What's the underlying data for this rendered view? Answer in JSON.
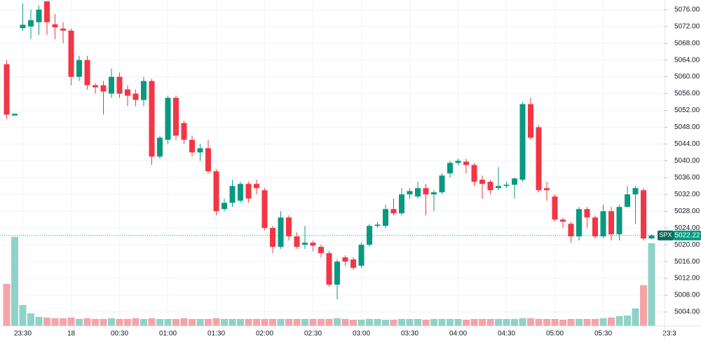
{
  "chart_data": {
    "type": "candlestick",
    "categories": [
      null,
      null,
      "23:30",
      null,
      null,
      null,
      null,
      null,
      "18",
      null,
      null,
      null,
      null,
      null,
      "00:30",
      null,
      null,
      null,
      null,
      null,
      "01:00",
      null,
      null,
      null,
      null,
      null,
      "01:30",
      null,
      null,
      null,
      null,
      null,
      "02:00",
      null,
      null,
      null,
      null,
      null,
      "02:30",
      null,
      null,
      null,
      null,
      null,
      "03:00",
      null,
      null,
      null,
      null,
      null,
      "03:30",
      null,
      null,
      null,
      null,
      null,
      "04:00",
      null,
      null,
      null,
      null,
      null,
      "04:30",
      null,
      null,
      null,
      null,
      null,
      "05:00",
      null,
      null,
      null,
      null,
      null,
      "05:30",
      null,
      null,
      null,
      null,
      null,
      null
    ],
    "edge_label": "23:3",
    "open": [
      5063,
      5050.8,
      5071.6,
      5072,
      5073,
      5078,
      5072.5,
      5071.5,
      5071,
      5060,
      5064,
      5058,
      5058,
      5056,
      5060,
      5057,
      5056,
      5054.5,
      5059,
      5041,
      5045,
      5055,
      5049,
      5045,
      5042,
      5043,
      5037.5,
      5028.5,
      5030,
      5030.5,
      5034.5,
      5034.5,
      5033,
      5024,
      5019.5,
      5026.5,
      5022,
      5020,
      5020.5,
      5019.5,
      5018,
      5010.5,
      5017,
      5016.5,
      5015,
      5020,
      5024.5,
      5024.5,
      5028.5,
      5027.5,
      5032,
      5031.5,
      5033.5,
      5032,
      5032.5,
      5037,
      5039.5,
      5039.8,
      5039,
      5035.5,
      5035,
      5033.5,
      5034,
      5034.3,
      5035.5,
      5053.5,
      5048,
      5033.5,
      5031.5,
      5026,
      5025,
      5022,
      5028.5,
      5026.5,
      5022,
      5028,
      5022.5,
      5029,
      5032,
      5033,
      5021.5
    ],
    "high": [
      5064,
      5051.3,
      5077.5,
      5076,
      5077,
      5077.8,
      5075,
      5073,
      5071.5,
      5065,
      5065,
      5058.5,
      5059,
      5062,
      5061,
      5058,
      5057,
      5060,
      5059.5,
      5046,
      5055.5,
      5055.5,
      5049.5,
      5046,
      5044,
      5045,
      5038,
      5031,
      5035.5,
      5035,
      5035,
      5035.5,
      5033.5,
      5024.5,
      5028,
      5027,
      5023,
      5024.5,
      5021,
      5020,
      5018.5,
      5016.5,
      5017.5,
      5017,
      5020.5,
      5025,
      5025.5,
      5029.5,
      5031,
      5033.5,
      5033.5,
      5035,
      5034.5,
      5033,
      5037,
      5040,
      5040.5,
      5040.5,
      5039.5,
      5036.5,
      5035.5,
      5038.5,
      5035,
      5036,
      5054,
      5055,
      5048.5,
      5035,
      5032,
      5026.5,
      5025.5,
      5029,
      5029,
      5027,
      5029.5,
      5029,
      5029.5,
      5034,
      5034,
      5033.5,
      5022.5
    ],
    "low": [
      5050,
      5050.7,
      5071,
      5069,
      5070,
      5070,
      5069,
      5068,
      5058,
      5059,
      5057,
      5056,
      5051,
      5055,
      5055,
      5053,
      5053,
      5053,
      5039,
      5040.5,
      5044,
      5045,
      5044,
      5041,
      5040,
      5037,
      5027,
      5028,
      5029,
      5030,
      5030,
      5032,
      5023.5,
      5018,
      5019,
      5021,
      5019,
      5019,
      5018.5,
      5017,
      5010,
      5007,
      5015,
      5014,
      5014.5,
      5019.5,
      5024,
      5024,
      5027,
      5027,
      5031,
      5031,
      5027,
      5028,
      5032,
      5036,
      5039,
      5037,
      5034,
      5031,
      5032,
      5033,
      5033.5,
      5031,
      5035,
      5045,
      5032.5,
      5030.5,
      5025.5,
      5024,
      5020.5,
      5021,
      5024,
      5021.5,
      5021.5,
      5021,
      5021,
      5029,
      5025,
      5021,
      5021.3
    ],
    "close": [
      5051,
      5051.2,
      5072.4,
      5073.5,
      5076,
      5073,
      5071.8,
      5071,
      5060,
      5064,
      5058,
      5057.5,
      5056.5,
      5060,
      5056,
      5055.5,
      5054.5,
      5059,
      5041,
      5045.5,
      5055,
      5046,
      5045,
      5042,
      5043,
      5037.5,
      5028,
      5030,
      5034,
      5034.5,
      5031,
      5033.5,
      5024,
      5019.5,
      5026.5,
      5022,
      5019.5,
      5020.5,
      5019.8,
      5018,
      5010.5,
      5016,
      5016,
      5014.5,
      5020,
      5024.5,
      5024.8,
      5028.5,
      5027.5,
      5032,
      5032.8,
      5033.5,
      5032,
      5032.5,
      5036.5,
      5039.5,
      5040,
      5039,
      5035,
      5034.5,
      5033,
      5034,
      5034.3,
      5035.8,
      5053.5,
      5045.5,
      5033,
      5033,
      5026,
      5025.5,
      5022,
      5028.5,
      5026.5,
      5022,
      5028,
      5022.5,
      5029,
      5032,
      5033.5,
      5021.5,
      5022.22
    ],
    "volume": [
      60,
      127,
      30,
      18,
      13,
      12,
      11,
      11,
      12,
      10,
      11,
      10,
      10,
      11,
      10,
      10,
      11,
      10,
      11,
      10,
      10,
      10,
      11,
      10,
      10,
      10,
      11,
      10,
      10,
      10,
      10,
      10,
      10,
      10,
      10,
      10,
      10,
      10,
      10,
      10,
      10,
      11,
      10,
      9,
      9,
      10,
      10,
      9,
      9,
      10,
      10,
      10,
      9,
      10,
      10,
      10,
      10,
      9,
      10,
      10,
      10,
      10,
      10,
      10,
      11,
      11,
      10,
      10,
      10,
      9,
      10,
      10,
      10,
      10,
      11,
      12,
      14,
      15,
      25,
      58,
      118
    ],
    "up_color": "#089981",
    "down_color": "#f23645",
    "volume_up_color": "#8fd3c8",
    "volume_down_color": "#f5a3a9",
    "ylim": [
      5000.66,
      5078.3
    ],
    "yticks": [
      {
        "value": 5004,
        "label": "5004.00"
      },
      {
        "value": 5008,
        "label": "5008.00"
      },
      {
        "value": 5012,
        "label": "5012.00"
      },
      {
        "value": 5016,
        "label": "5016.00"
      },
      {
        "value": 5020,
        "label": "5020.00"
      },
      {
        "value": 5024,
        "label": "5024.00"
      },
      {
        "value": 5028,
        "label": "5028.00"
      },
      {
        "value": 5032,
        "label": "5032.00"
      },
      {
        "value": 5036,
        "label": "5036.00"
      },
      {
        "value": 5040,
        "label": "5040.00"
      },
      {
        "value": 5044,
        "label": "5044.00"
      },
      {
        "value": 5048,
        "label": "5048.00"
      },
      {
        "value": 5052,
        "label": "5052.00"
      },
      {
        "value": 5056,
        "label": "5056.00"
      },
      {
        "value": 5060,
        "label": "5060.00"
      },
      {
        "value": 5064,
        "label": "5064.00"
      },
      {
        "value": 5068,
        "label": "5068.00"
      },
      {
        "value": 5072,
        "label": "5072.00"
      },
      {
        "value": 5076,
        "label": "5076.00"
      }
    ],
    "grid": true,
    "last_price": {
      "symbol": "SPX",
      "value": 5022.22
    }
  }
}
